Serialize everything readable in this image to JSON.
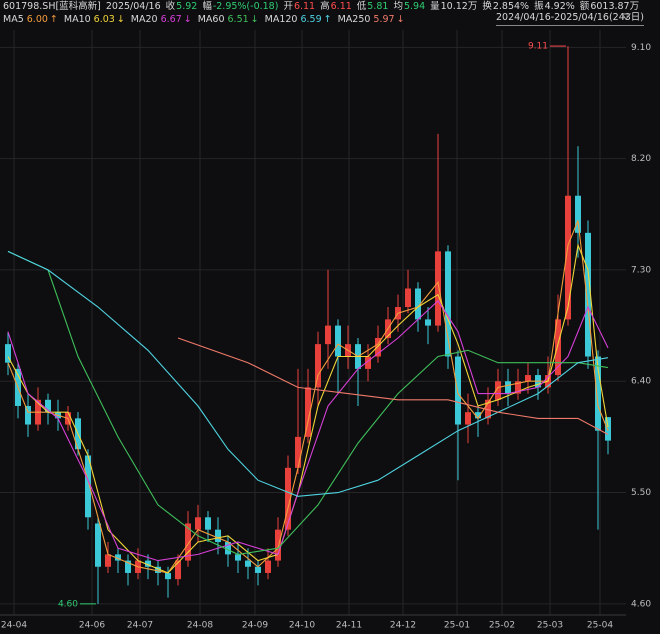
{
  "header": {
    "items": [
      {
        "text": "601798.SH[蓝科高新]",
        "color": "#d8d8d8"
      },
      {
        "text": "2025/04/16",
        "color": "#d8d8d8"
      },
      {
        "text": "收",
        "color": "#d8d8d8"
      },
      {
        "text": "5.92",
        "color": "#2ecc71"
      },
      {
        "text": "幅",
        "color": "#d8d8d8"
      },
      {
        "text": "-2.95%(-0.18)",
        "color": "#2ecc71"
      },
      {
        "text": "开",
        "color": "#d8d8d8"
      },
      {
        "text": "6.11",
        "color": "#ff4d4d"
      },
      {
        "text": "高",
        "color": "#d8d8d8"
      },
      {
        "text": "6.11",
        "color": "#ff4d4d"
      },
      {
        "text": "低",
        "color": "#d8d8d8"
      },
      {
        "text": "5.81",
        "color": "#2ecc71"
      },
      {
        "text": "均",
        "color": "#d8d8d8"
      },
      {
        "text": "5.94",
        "color": "#2ecc71"
      },
      {
        "text": "量",
        "color": "#d8d8d8"
      },
      {
        "text": "10.12万",
        "color": "#d8d8d8"
      },
      {
        "text": "换",
        "color": "#d8d8d8"
      },
      {
        "text": "2.854%",
        "color": "#d8d8d8"
      },
      {
        "text": "振",
        "color": "#d8d8d8"
      },
      {
        "text": "4.92%",
        "color": "#d8d8d8"
      },
      {
        "text": "额",
        "color": "#d8d8d8"
      },
      {
        "text": "6013.87万",
        "color": "#d8d8d8"
      }
    ],
    "range": "2024/04/16-2025/04/16(243日)"
  },
  "chart_data": {
    "type": "candlestick",
    "up_color": "#e8413c",
    "down_color": "#3cc8d6",
    "candles": {
      "open": [
        6.7,
        6.5,
        6.2,
        6.05,
        6.25,
        6.15,
        6.05,
        6.1,
        5.8,
        5.25,
        4.9,
        5.0,
        4.95,
        4.85,
        4.95,
        4.9,
        4.85,
        4.8,
        4.95,
        5.2,
        5.3,
        5.2,
        5.1,
        5.0,
        4.95,
        4.9,
        4.85,
        4.95,
        5.2,
        5.7,
        5.95,
        6.35,
        6.7,
        6.85,
        6.6,
        6.7,
        6.5,
        6.6,
        6.75,
        6.9,
        7.0,
        7.15,
        6.9,
        6.85,
        7.45,
        6.6,
        6.05,
        6.15,
        6.1,
        6.25,
        6.4,
        6.3,
        6.4,
        6.45,
        6.35,
        6.45,
        6.9,
        7.9,
        7.6,
        6.6,
        6.11
      ],
      "high": [
        6.8,
        6.55,
        6.3,
        6.35,
        6.3,
        6.25,
        6.2,
        6.15,
        5.85,
        5.3,
        5.1,
        5.05,
        5.0,
        5.05,
        5.0,
        4.95,
        4.9,
        5.0,
        5.35,
        5.4,
        5.35,
        5.3,
        5.15,
        5.1,
        5.05,
        4.95,
        5.05,
        5.3,
        5.8,
        6.5,
        6.5,
        6.8,
        7.3,
        6.9,
        6.85,
        6.75,
        6.7,
        6.85,
        7.0,
        7.1,
        7.3,
        7.2,
        7.0,
        8.4,
        7.5,
        6.65,
        6.3,
        6.2,
        6.35,
        6.5,
        6.5,
        6.5,
        6.55,
        6.5,
        6.6,
        7.1,
        9.11,
        8.3,
        7.7,
        6.65,
        6.11
      ],
      "low": [
        6.45,
        6.1,
        5.95,
        6.0,
        6.05,
        6.0,
        6.0,
        5.8,
        5.2,
        4.6,
        4.85,
        4.85,
        4.75,
        4.8,
        4.8,
        4.75,
        4.65,
        4.75,
        4.9,
        5.1,
        5.1,
        5.0,
        4.9,
        4.85,
        4.8,
        4.75,
        4.8,
        4.9,
        5.15,
        5.65,
        5.9,
        6.2,
        6.5,
        6.3,
        6.5,
        6.2,
        6.4,
        6.55,
        6.7,
        6.8,
        6.95,
        6.8,
        6.7,
        6.8,
        6.5,
        5.6,
        5.9,
        5.95,
        6.05,
        6.2,
        6.2,
        6.25,
        6.3,
        6.25,
        6.3,
        6.4,
        6.85,
        7.4,
        6.5,
        5.2,
        5.81
      ],
      "close": [
        6.55,
        6.2,
        6.05,
        6.25,
        6.15,
        6.1,
        6.15,
        5.85,
        5.3,
        4.9,
        5.0,
        4.95,
        4.85,
        4.95,
        4.9,
        4.85,
        4.8,
        4.95,
        5.25,
        5.3,
        5.2,
        5.1,
        5.0,
        4.95,
        4.9,
        4.85,
        4.95,
        5.2,
        5.7,
        5.95,
        6.35,
        6.7,
        6.85,
        6.6,
        6.7,
        6.5,
        6.6,
        6.75,
        6.9,
        7.0,
        7.15,
        6.9,
        6.85,
        7.45,
        6.6,
        6.05,
        6.15,
        6.1,
        6.25,
        6.4,
        6.3,
        6.4,
        6.45,
        6.35,
        6.45,
        6.9,
        7.9,
        7.6,
        6.6,
        6.0,
        5.92
      ]
    },
    "series": [
      {
        "name": "MA5",
        "last": "6.00",
        "trend": "↑",
        "name_color": "#d8d8d8",
        "color": "#f39c3c",
        "x": [
          0,
          2,
          4,
          6,
          8,
          10,
          13,
          16,
          19,
          22,
          25,
          27,
          29,
          31,
          33,
          35,
          37,
          39,
          41,
          43,
          45,
          47,
          49,
          52,
          54,
          56,
          57,
          58,
          59,
          60
        ],
        "values": [
          6.55,
          6.15,
          6.15,
          6.1,
          5.6,
          5.0,
          4.9,
          4.85,
          5.2,
          5.1,
          4.9,
          5.05,
          5.7,
          6.45,
          6.7,
          6.6,
          6.7,
          6.95,
          7.0,
          7.2,
          6.3,
          6.1,
          6.35,
          6.4,
          6.4,
          7.5,
          7.7,
          7.0,
          6.2,
          6.0
        ]
      },
      {
        "name": "MA10",
        "last": "6.03",
        "trend": "↓",
        "name_color": "#d8d8d8",
        "color": "#f1d438",
        "x": [
          0,
          2,
          4,
          6,
          8,
          10,
          13,
          16,
          19,
          22,
          25,
          27,
          29,
          31,
          33,
          36,
          39,
          41,
          43,
          45,
          47,
          49,
          52,
          54,
          56,
          57,
          58,
          59,
          60
        ],
        "values": [
          6.6,
          6.3,
          6.15,
          6.15,
          5.8,
          5.2,
          4.95,
          4.85,
          5.1,
          5.15,
          4.95,
          5.0,
          5.5,
          6.2,
          6.6,
          6.6,
          6.85,
          7.0,
          7.1,
          6.7,
          6.2,
          6.25,
          6.35,
          6.4,
          7.0,
          7.5,
          7.3,
          6.5,
          6.03
        ]
      },
      {
        "name": "MA20",
        "last": "6.67",
        "trend": "↓",
        "name_color": "#d8d8d8",
        "color": "#d63fd6",
        "x": [
          0,
          2,
          5,
          8,
          11,
          15,
          19,
          23,
          27,
          29,
          32,
          35,
          39,
          43,
          45,
          47,
          50,
          53,
          56,
          58,
          60
        ],
        "values": [
          6.8,
          6.3,
          6.1,
          5.6,
          5.05,
          4.95,
          5.0,
          5.1,
          5.0,
          5.5,
          6.2,
          6.5,
          6.75,
          7.05,
          6.8,
          6.3,
          6.3,
          6.35,
          6.6,
          7.0,
          6.67
        ]
      },
      {
        "name": "MA60",
        "last": "6.51",
        "trend": "↓",
        "name_color": "#d8d8d8",
        "color": "#3fbf5a",
        "x": [
          0,
          4,
          7,
          11,
          15,
          19,
          23,
          27,
          31,
          35,
          39,
          43,
          46,
          49,
          53,
          57,
          60
        ],
        "values": [
          7.45,
          7.3,
          6.6,
          5.95,
          5.4,
          5.15,
          5.0,
          5.05,
          5.4,
          5.9,
          6.3,
          6.6,
          6.65,
          6.55,
          6.55,
          6.55,
          6.51
        ]
      },
      {
        "name": "MA120",
        "last": "6.59",
        "trend": "↑",
        "name_color": "#d8d8d8",
        "color": "#4fd2e0",
        "x": [
          0,
          4,
          9,
          14,
          19,
          22,
          25,
          29,
          33,
          37,
          41,
          45,
          49,
          53,
          57,
          60
        ],
        "values": [
          7.45,
          7.3,
          7.0,
          6.65,
          6.2,
          5.85,
          5.6,
          5.47,
          5.5,
          5.6,
          5.8,
          6.0,
          6.15,
          6.3,
          6.55,
          6.59
        ]
      },
      {
        "name": "MA250",
        "last": "5.97",
        "trend": "↓",
        "name_color": "#d8d8d8",
        "color": "#f07a6a",
        "x": [
          17,
          24,
          29,
          34,
          39,
          44,
          49,
          53,
          57,
          60
        ],
        "values": [
          6.75,
          6.55,
          6.35,
          6.3,
          6.25,
          6.25,
          6.15,
          6.1,
          6.1,
          5.97
        ]
      }
    ],
    "legend_value_colors": [
      "#f39c3c",
      "#f1d438",
      "#d63fd6",
      "#3fbf5a",
      "#4fd2e0",
      "#f07a6a"
    ],
    "ylim": [
      4.51,
      9.24
    ],
    "yticks": [
      {
        "value": 4.6,
        "label": "4.60"
      },
      {
        "value": 5.5,
        "label": "5.50"
      },
      {
        "value": 6.4,
        "label": "6.40"
      },
      {
        "value": 7.3,
        "label": "7.30"
      },
      {
        "value": 8.2,
        "label": "8.20"
      },
      {
        "value": 9.1,
        "label": "9.10"
      }
    ],
    "xlim": [
      0,
      60
    ],
    "xticks": [
      {
        "value": 0.6,
        "label": "24-04"
      },
      {
        "value": 8.4,
        "label": "24-06"
      },
      {
        "value": 13.2,
        "label": "24-07"
      },
      {
        "value": 19.2,
        "label": "24-08"
      },
      {
        "value": 24.7,
        "label": "24-09"
      },
      {
        "value": 29.4,
        "label": "24-10"
      },
      {
        "value": 34.1,
        "label": "24-11"
      },
      {
        "value": 39.5,
        "label": "24-12"
      },
      {
        "value": 44.9,
        "label": "25-01"
      },
      {
        "value": 49.4,
        "label": "25-02"
      },
      {
        "value": 54.2,
        "label": "25-03"
      },
      {
        "value": 59.2,
        "label": "25-04"
      }
    ],
    "annotations": [
      {
        "text": "9.11",
        "x": 56,
        "y": 9.11,
        "color": "#ff4d4d",
        "side": "left"
      },
      {
        "text": "4.60",
        "x": 9,
        "y": 4.6,
        "color": "#2ecc71",
        "side": "left"
      }
    ],
    "grid": true
  }
}
